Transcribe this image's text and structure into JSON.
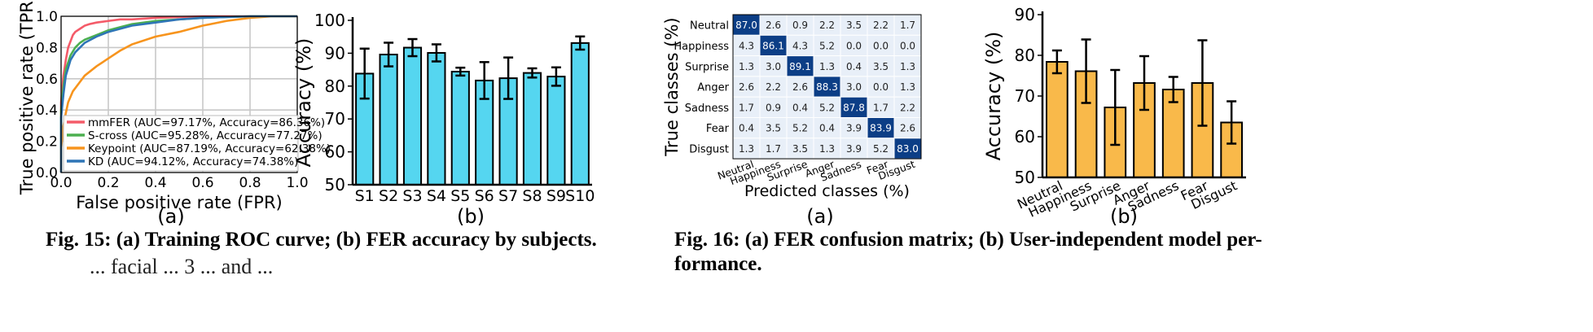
{
  "captions": {
    "fig15": "Fig. 15: (a) Training ROC curve; (b) FER accuracy by subjects.",
    "fig16_line1": "Fig. 16: (a) FER confusion matrix; (b) User-independent model per-",
    "fig16_line2": "formance.",
    "body_fragment": "... facial ... 3 ... and ..."
  },
  "sublabels": {
    "a": "(a)",
    "b": "(b)"
  },
  "colors": {
    "mmfer": "#f45b69",
    "scross": "#4caf50",
    "keypoint": "#f7941d",
    "kd": "#2e75b6",
    "bar15": "#55d6f0",
    "bar16": "#f9b94a",
    "cm_dark": "#0c3e86",
    "cm_light": "#e8eff8"
  },
  "chart_data": [
    {
      "type": "line",
      "title": "",
      "xlabel": "False positive rate (FPR)",
      "ylabel": "True positive rate (TPR)",
      "xlim": [
        0.0,
        1.0
      ],
      "ylim": [
        0.0,
        1.0
      ],
      "xticks": [
        "0.0",
        "0.2",
        "0.4",
        "0.6",
        "0.8",
        "1.0"
      ],
      "yticks": [
        "0.0",
        "0.2",
        "0.4",
        "0.6",
        "0.8",
        "1.0"
      ],
      "grid": true,
      "legend_position": "lower-right",
      "series": [
        {
          "name": "mmFER (AUC=97.17%, Accuracy=86.36%)",
          "color": "#f45b69",
          "x": [
            0,
            0,
            0.01,
            0.02,
            0.03,
            0.04,
            0.05,
            0.06,
            0.08,
            0.1,
            0.12,
            0.15,
            0.2,
            0.25,
            0.3,
            0.4,
            0.5,
            0.6,
            0.8,
            1.0
          ],
          "y": [
            0,
            0.45,
            0.62,
            0.72,
            0.8,
            0.84,
            0.88,
            0.9,
            0.92,
            0.94,
            0.95,
            0.96,
            0.97,
            0.98,
            0.98,
            0.99,
            0.995,
            1.0,
            1.0,
            1.0
          ]
        },
        {
          "name": "S-cross (AUC=95.28%, Accuracy=77.27%)",
          "color": "#4caf50",
          "x": [
            0,
            0,
            0.01,
            0.02,
            0.04,
            0.06,
            0.08,
            0.1,
            0.15,
            0.2,
            0.25,
            0.3,
            0.4,
            0.5,
            0.6,
            0.7,
            0.8,
            0.9,
            1.0
          ],
          "y": [
            0,
            0.4,
            0.55,
            0.66,
            0.75,
            0.8,
            0.83,
            0.85,
            0.88,
            0.91,
            0.93,
            0.95,
            0.97,
            0.98,
            0.99,
            0.995,
            1.0,
            1.0,
            1.0
          ]
        },
        {
          "name": "Keypoint (AUC=87.19%, Accuracy=62.38%)",
          "color": "#f7941d",
          "x": [
            0,
            0,
            0.01,
            0.02,
            0.03,
            0.05,
            0.08,
            0.1,
            0.15,
            0.2,
            0.25,
            0.3,
            0.4,
            0.5,
            0.6,
            0.7,
            0.8,
            0.9,
            1.0
          ],
          "y": [
            0,
            0.15,
            0.3,
            0.38,
            0.45,
            0.52,
            0.58,
            0.62,
            0.68,
            0.73,
            0.78,
            0.82,
            0.87,
            0.9,
            0.94,
            0.97,
            0.99,
            1.0,
            1.0
          ]
        },
        {
          "name": "KD (AUC=94.12%, Accuracy=74.38%)",
          "color": "#2e75b6",
          "x": [
            0,
            0,
            0.01,
            0.02,
            0.04,
            0.06,
            0.08,
            0.1,
            0.15,
            0.2,
            0.25,
            0.3,
            0.4,
            0.5,
            0.6,
            0.7,
            0.8,
            0.9,
            1.0
          ],
          "y": [
            0,
            0.35,
            0.5,
            0.62,
            0.72,
            0.77,
            0.8,
            0.83,
            0.87,
            0.9,
            0.92,
            0.94,
            0.96,
            0.98,
            0.99,
            0.995,
            1.0,
            1.0,
            1.0
          ]
        }
      ]
    },
    {
      "type": "bar",
      "title": "",
      "xlabel": "",
      "ylabel": "Accuracy (%)",
      "ylim": [
        50,
        100
      ],
      "yticks": [
        "50",
        "60",
        "70",
        "80",
        "90",
        "100"
      ],
      "categories": [
        "S1",
        "S2",
        "S3",
        "S4",
        "S5",
        "S6",
        "S7",
        "S8",
        "S9",
        "S10"
      ],
      "values": [
        83.8,
        89.6,
        91.7,
        90.1,
        84.4,
        81.7,
        82.4,
        84.0,
        82.9,
        93.1
      ],
      "errors": [
        7.6,
        3.6,
        2.6,
        2.6,
        1.2,
        5.6,
        6.3,
        1.4,
        2.8,
        2.0
      ]
    },
    {
      "type": "heatmap",
      "title": "",
      "xlabel": "Predicted classes (%)",
      "ylabel": "True classes (%)",
      "rows": [
        "Neutral",
        "Happiness",
        "Surprise",
        "Anger",
        "Sadness",
        "Fear",
        "Disgust"
      ],
      "cols": [
        "Neutral",
        "Happiness",
        "Surprise",
        "Anger",
        "Sadness",
        "Fear",
        "Disgust"
      ],
      "values": [
        [
          "87.0",
          "2.6",
          "0.9",
          "2.2",
          "3.5",
          "2.2",
          "1.7"
        ],
        [
          "4.3",
          "86.1",
          "4.3",
          "5.2",
          "0.0",
          "0.0",
          "0.0"
        ],
        [
          "1.3",
          "3.0",
          "89.1",
          "1.3",
          "0.4",
          "3.5",
          "1.3"
        ],
        [
          "2.6",
          "2.2",
          "2.6",
          "88.3",
          "3.0",
          "0.0",
          "1.3"
        ],
        [
          "1.7",
          "0.9",
          "0.4",
          "5.2",
          "87.8",
          "1.7",
          "2.2"
        ],
        [
          "0.4",
          "3.5",
          "5.2",
          "0.4",
          "3.9",
          "83.9",
          "2.6"
        ],
        [
          "1.3",
          "1.7",
          "3.5",
          "1.3",
          "3.9",
          "5.2",
          "83.0"
        ]
      ]
    },
    {
      "type": "bar",
      "title": "",
      "xlabel": "",
      "ylabel": "Accuracy (%)",
      "ylim": [
        50,
        90
      ],
      "yticks": [
        "50",
        "60",
        "70",
        "80",
        "90"
      ],
      "categories": [
        "Neutral",
        "Happiness",
        "Surprise",
        "Anger",
        "Sadness",
        "Fear",
        "Disgust"
      ],
      "values": [
        78.4,
        76.1,
        67.2,
        73.2,
        71.6,
        73.2,
        63.5
      ],
      "errors": [
        2.8,
        7.8,
        9.2,
        6.6,
        3.1,
        10.5,
        5.2
      ]
    }
  ]
}
